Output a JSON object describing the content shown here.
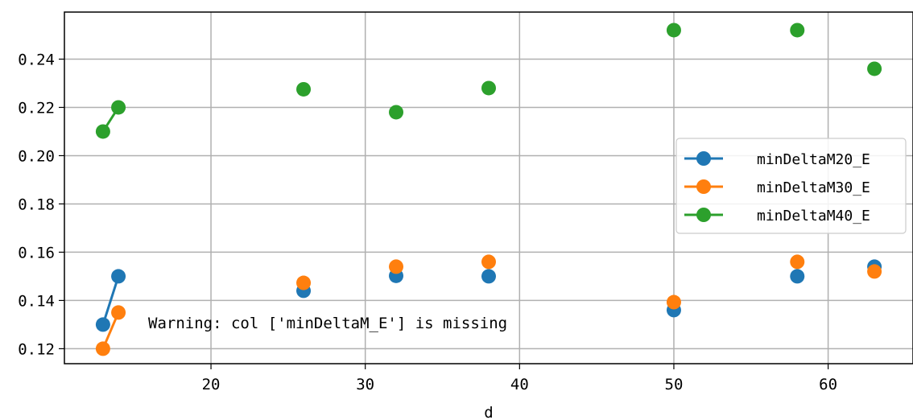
{
  "chart_data": {
    "type": "scatter",
    "xlabel": "d",
    "ylabel": "",
    "xlim": [
      10.5,
      65.5
    ],
    "ylim": [
      0.1138,
      0.2595
    ],
    "xticks": [
      20,
      30,
      40,
      50,
      60
    ],
    "yticks": [
      0.12,
      0.14,
      0.16,
      0.18,
      0.2,
      0.22,
      0.24
    ],
    "ytick_labels": [
      "0.12",
      "0.14",
      "0.16",
      "0.18",
      "0.20",
      "0.22",
      "0.24"
    ],
    "grid": true,
    "legend_position": "right",
    "series": [
      {
        "name": "minDeltaM20_E",
        "color": "#1f77b4",
        "x": [
          13,
          14,
          26,
          32,
          38,
          50,
          58,
          63
        ],
        "y": [
          0.13,
          0.15,
          0.144,
          0.1502,
          0.15,
          0.136,
          0.15,
          0.154
        ],
        "connected_prefix": 2
      },
      {
        "name": "minDeltaM30_E",
        "color": "#ff7f0e",
        "x": [
          13,
          14,
          26,
          32,
          38,
          50,
          58,
          63
        ],
        "y": [
          0.12,
          0.135,
          0.1473,
          0.154,
          0.156,
          0.1393,
          0.156,
          0.152
        ],
        "connected_prefix": 2
      },
      {
        "name": "minDeltaM40_E",
        "color": "#2ca02c",
        "x": [
          13,
          14,
          26,
          32,
          38,
          50,
          58,
          63
        ],
        "y": [
          0.21,
          0.22,
          0.2275,
          0.218,
          0.228,
          0.252,
          0.252,
          0.236
        ],
        "connected_prefix": 2
      }
    ],
    "annotation": "Warning: col ['minDeltaM_E'] is missing"
  }
}
